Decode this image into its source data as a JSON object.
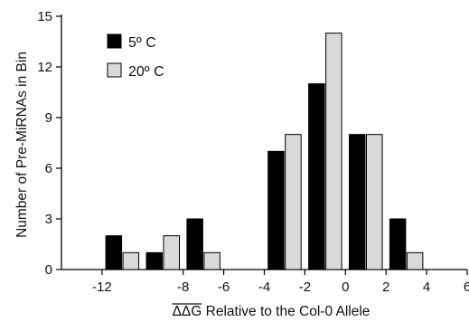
{
  "chart_data": {
    "type": "bar",
    "ylabel": "Number of Pre-MiRNAs in Bin",
    "xlabel_overline": "ΔΔG",
    "xlabel_rest": " Relative to the Col-0 Allele",
    "ylim": [
      0,
      15
    ],
    "y_ticks": [
      "0",
      "3",
      "6",
      "9",
      "12",
      "15"
    ],
    "x_tick_values": [
      -12,
      -8,
      -6,
      -4,
      -2,
      0,
      2,
      4,
      6
    ],
    "x_tick_labels": [
      "-12",
      "-8",
      "-6",
      "-4",
      "-2",
      "0",
      "2",
      "4",
      "6"
    ],
    "categories": [
      "-11",
      "-9",
      "-7",
      "-5",
      "-3",
      "-1",
      "1",
      "3"
    ],
    "series": [
      {
        "name": "5º C",
        "color": "#000000",
        "values": [
          2,
          1,
          3,
          0,
          7,
          11,
          8,
          3
        ]
      },
      {
        "name": "20º C",
        "color": "#d9d9d9",
        "values": [
          1,
          2,
          1,
          0,
          8,
          14,
          8,
          1
        ]
      }
    ],
    "legend_position": "top-left",
    "grid": false
  }
}
